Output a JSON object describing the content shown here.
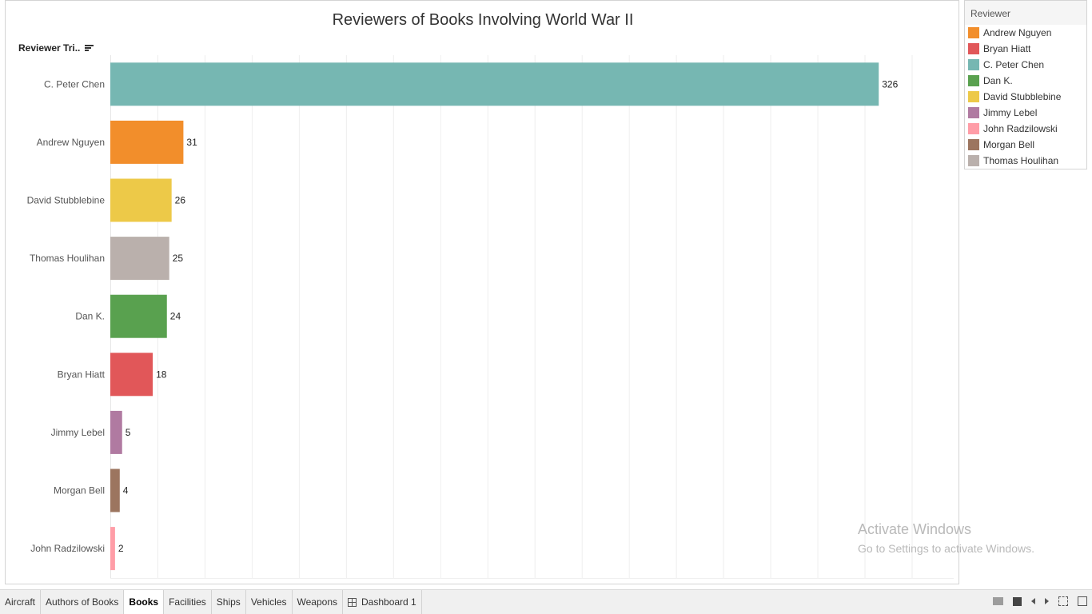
{
  "chart_data": {
    "type": "bar",
    "orientation": "horizontal",
    "title": "Reviewers of Books Involving World War II",
    "row_header": "Reviewer Tri..",
    "categories": [
      "C. Peter Chen",
      "Andrew Nguyen",
      "David Stubblebine",
      "Thomas Houlihan",
      "Dan K.",
      "Bryan Hiatt",
      "Jimmy Lebel",
      "Morgan Bell",
      "John Radzilowski"
    ],
    "values": [
      326,
      31,
      26,
      25,
      24,
      18,
      5,
      4,
      2
    ],
    "colors": [
      "#76b7b2",
      "#f28e2b",
      "#edc948",
      "#bab0ac",
      "#59a14f",
      "#e15759",
      "#b07aa1",
      "#9c755f",
      "#ff9da7"
    ],
    "xlim": [
      0,
      350
    ],
    "grid": "vertical",
    "xlabel": "",
    "ylabel": ""
  },
  "legend": {
    "title": "Reviewer",
    "items": [
      {
        "label": "Andrew Nguyen",
        "color": "#f28e2b"
      },
      {
        "label": "Bryan Hiatt",
        "color": "#e15759"
      },
      {
        "label": "C. Peter Chen",
        "color": "#76b7b2"
      },
      {
        "label": "Dan K.",
        "color": "#59a14f"
      },
      {
        "label": "David Stubblebine",
        "color": "#edc948"
      },
      {
        "label": "Jimmy Lebel",
        "color": "#b07aa1"
      },
      {
        "label": "John Radzilowski",
        "color": "#ff9da7"
      },
      {
        "label": "Morgan Bell",
        "color": "#9c755f"
      },
      {
        "label": "Thomas Houlihan",
        "color": "#bab0ac"
      }
    ]
  },
  "tabs": [
    {
      "label": "Aircraft",
      "active": false
    },
    {
      "label": "Authors of Books",
      "active": false
    },
    {
      "label": "Books",
      "active": true
    },
    {
      "label": "Facilities",
      "active": false
    },
    {
      "label": "Ships",
      "active": false
    },
    {
      "label": "Vehicles",
      "active": false
    },
    {
      "label": "Weapons",
      "active": false
    }
  ],
  "dashboard_tab": {
    "label": "Dashboard 1",
    "icon": "grid-icon"
  },
  "watermark": {
    "line1": "Activate Windows",
    "line2": "Go to Settings to activate Windows."
  }
}
